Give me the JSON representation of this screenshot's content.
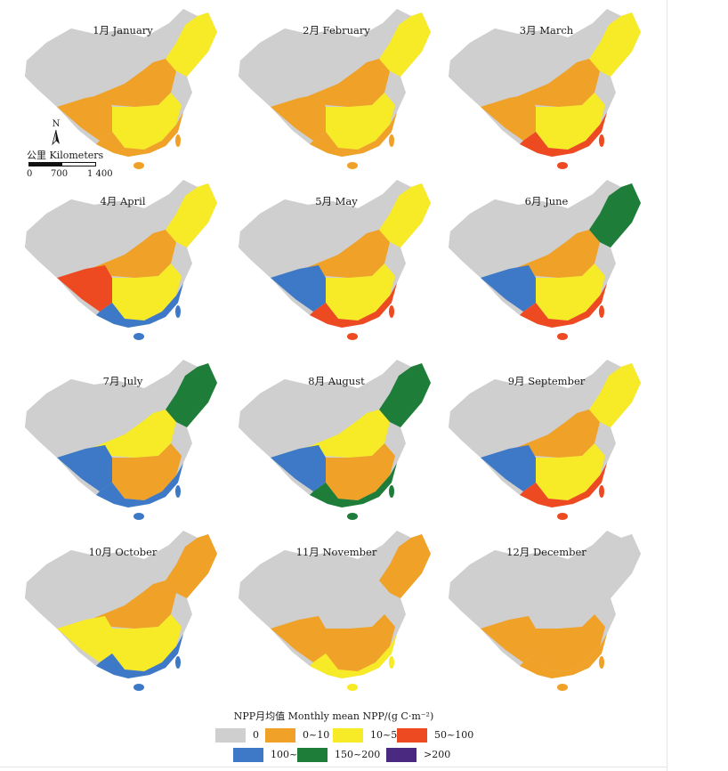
{
  "colors": {
    "c0": "#cfcfcf",
    "c1": "#f0a127",
    "c2": "#f7ea26",
    "c3": "#ee4a22",
    "c4": "#3d79c6",
    "c5": "#1f7d3a",
    "c6": "#4a2a80"
  },
  "months": [
    {
      "label": "1月  January",
      "fills": [
        "#cfcfcf",
        "#f0a127",
        "#f7ea26",
        "#f0a127",
        "#f7ea26",
        "#f0a127"
      ]
    },
    {
      "label": "2月  February",
      "fills": [
        "#cfcfcf",
        "#f0a127",
        "#f7ea26",
        "#f0a127",
        "#f7ea26",
        "#f0a127"
      ]
    },
    {
      "label": "3月  March",
      "fills": [
        "#cfcfcf",
        "#f0a127",
        "#f7ea26",
        "#f0a127",
        "#f7ea26",
        "#ee4a22"
      ]
    },
    {
      "label": "4月  April",
      "fills": [
        "#cfcfcf",
        "#f0a127",
        "#f7ea26",
        "#ee4a22",
        "#f7ea26",
        "#3d79c6"
      ]
    },
    {
      "label": "5月  May",
      "fills": [
        "#cfcfcf",
        "#f0a127",
        "#f7ea26",
        "#3d79c6",
        "#f7ea26",
        "#ee4a22"
      ]
    },
    {
      "label": "6月  June",
      "fills": [
        "#cfcfcf",
        "#f0a127",
        "#f7ea26",
        "#3d79c6",
        "#1f7d3a",
        "#ee4a22"
      ]
    },
    {
      "label": "7月  July",
      "fills": [
        "#cfcfcf",
        "#f7ea26",
        "#f0a127",
        "#3d79c6",
        "#1f7d3a",
        "#3d79c6"
      ]
    },
    {
      "label": "8月  August",
      "fills": [
        "#cfcfcf",
        "#f7ea26",
        "#f0a127",
        "#3d79c6",
        "#1f7d3a",
        "#1f7d3a"
      ]
    },
    {
      "label": "9月  September",
      "fills": [
        "#cfcfcf",
        "#f0a127",
        "#f7ea26",
        "#3d79c6",
        "#f7ea26",
        "#ee4a22"
      ]
    },
    {
      "label": "10月  October",
      "fills": [
        "#cfcfcf",
        "#f0a127",
        "#f7ea26",
        "#f7ea26",
        "#f0a127",
        "#3d79c6"
      ]
    },
    {
      "label": "11月  November",
      "fills": [
        "#cfcfcf",
        "#cfcfcf",
        "#f0a127",
        "#f0a127",
        "#f0a127",
        "#f7ea26"
      ]
    },
    {
      "label": "12月  December",
      "fills": [
        "#cfcfcf",
        "#cfcfcf",
        "#f0a127",
        "#f0a127",
        "#cfcfcf",
        "#f0a127"
      ]
    }
  ],
  "scale_bar": {
    "north": "N",
    "title": "公里 Kilometers",
    "ticks": [
      "0",
      "700",
      "1 400"
    ]
  },
  "legend": {
    "title": "NPP月均值  Monthly mean NPP/(g C·m⁻²)",
    "items": [
      {
        "label": "0",
        "color": "#cfcfcf"
      },
      {
        "label": "0~10",
        "color": "#f0a127"
      },
      {
        "label": "10~50",
        "color": "#f7ea26"
      },
      {
        "label": "50~100",
        "color": "#ee4a22"
      },
      {
        "label": "100~150",
        "color": "#3d79c6"
      },
      {
        "label": "150~200",
        "color": "#1f7d3a"
      },
      {
        "label": ">200",
        "color": "#4a2a80"
      }
    ]
  }
}
